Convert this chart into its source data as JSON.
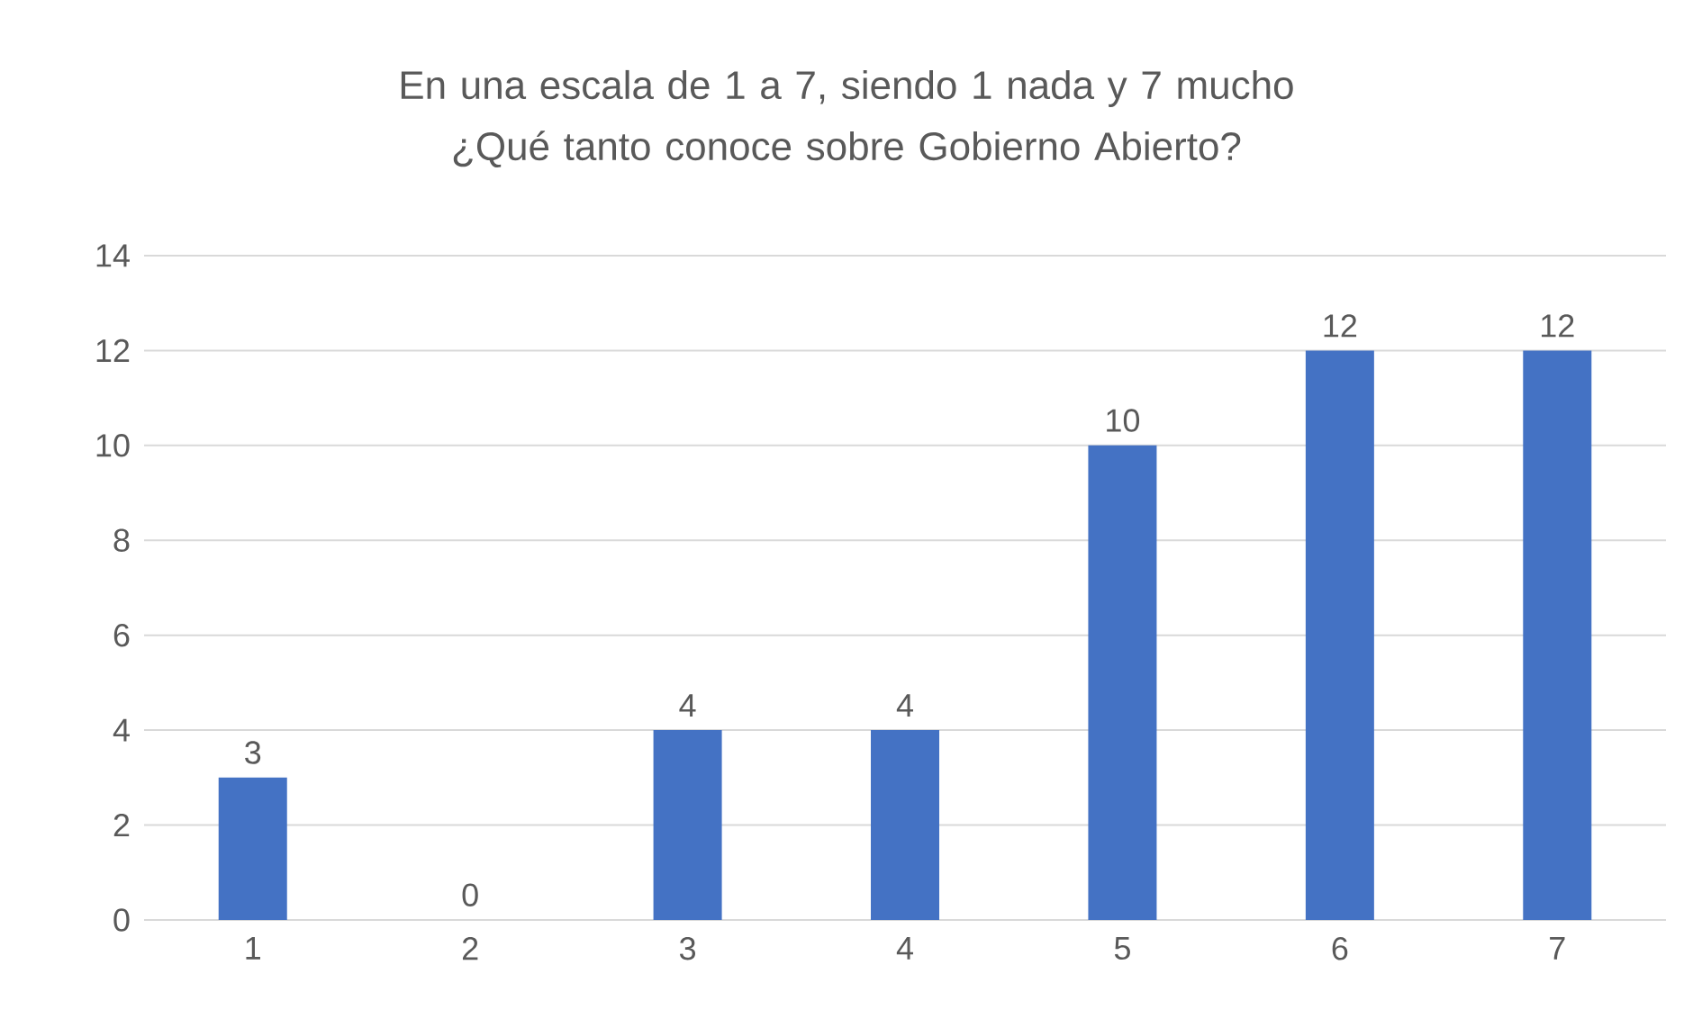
{
  "chart_data": {
    "type": "bar",
    "title": "En una escala de 1 a 7, siendo 1 nada y 7 mucho ¿Qué tanto conoce sobre Gobierno Abierto?",
    "categories": [
      "1",
      "2",
      "3",
      "4",
      "5",
      "6",
      "7"
    ],
    "values": [
      3,
      0,
      4,
      4,
      10,
      12,
      12
    ],
    "color": "#4472c4",
    "ylim": [
      0,
      14
    ],
    "yticks": [
      0,
      2,
      4,
      6,
      8,
      10,
      12,
      14
    ],
    "grid": "y",
    "data_labels": true
  }
}
